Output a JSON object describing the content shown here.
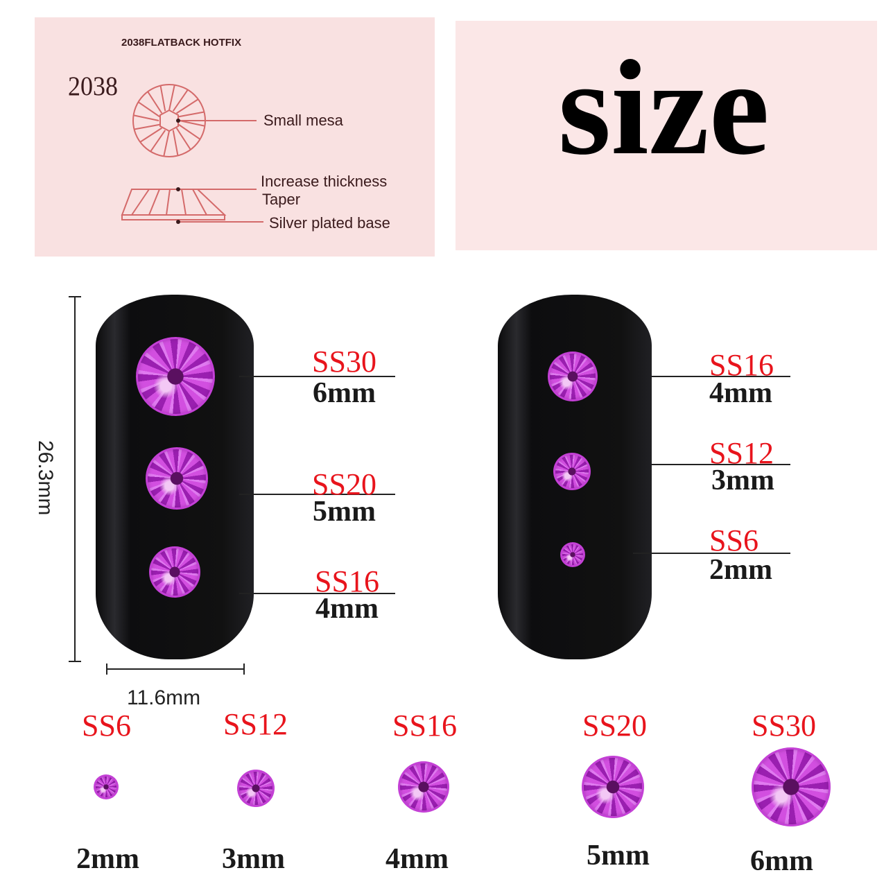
{
  "diagram": {
    "subtitle": "2038FLATBACK HOTFIX",
    "model": "2038",
    "labels": [
      "Small mesa",
      "Increase thickness",
      "Taper",
      "Silver plated base"
    ]
  },
  "heading": "size",
  "nail_dimensions": {
    "height": "26.3mm",
    "width": "11.6mm"
  },
  "nail_left": [
    {
      "code": "SS30",
      "size": "6mm"
    },
    {
      "code": "SS20",
      "size": "5mm"
    },
    {
      "code": "SS16",
      "size": "4mm"
    }
  ],
  "nail_right": [
    {
      "code": "SS16",
      "size": "4mm"
    },
    {
      "code": "SS12",
      "size": "3mm"
    },
    {
      "code": "SS6",
      "size": "2mm"
    }
  ],
  "size_row": [
    {
      "code": "SS6",
      "size": "2mm"
    },
    {
      "code": "SS12",
      "size": "3mm"
    },
    {
      "code": "SS16",
      "size": "4mm"
    },
    {
      "code": "SS20",
      "size": "5mm"
    },
    {
      "code": "SS30",
      "size": "6mm"
    }
  ],
  "colors": {
    "label_red": "#e8141c",
    "gem": "#b535c8",
    "panel_pink": "#f9e1e1",
    "diagram_line": "#d46a6a"
  }
}
